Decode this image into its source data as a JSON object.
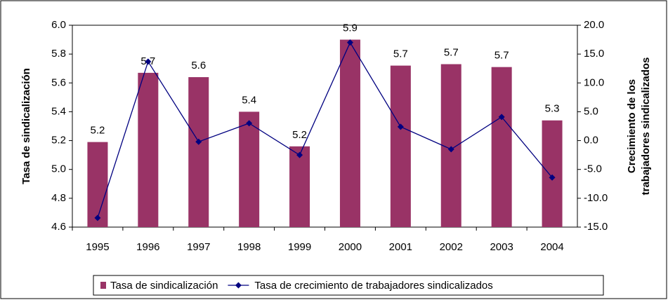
{
  "chart_data": {
    "type": "bar",
    "categories": [
      "1995",
      "1996",
      "1997",
      "1998",
      "1999",
      "2000",
      "2001",
      "2002",
      "2003",
      "2004"
    ],
    "ylabel": "Tasa de sindicalización",
    "y2label": [
      "Crecimiento  de los",
      "trabajadores sindicalizados"
    ],
    "ylim": [
      4.6,
      6.0
    ],
    "yticks": [
      4.6,
      4.8,
      {
        "value": 5.0,
        "label": "5.0"
      },
      5.2,
      5.4,
      5.6,
      5.8,
      {
        "value": 6.0,
        "label": "6.0"
      }
    ],
    "y2lim": [
      -15.0,
      20.0
    ],
    "y2ticks": [
      {
        "value": -15,
        "label": "-15.0"
      },
      {
        "value": -10,
        "label": "-10.0"
      },
      {
        "value": -5,
        "label": "-5.0"
      },
      {
        "value": 0,
        "label": "0.0"
      },
      {
        "value": 5,
        "label": "5.0"
      },
      {
        "value": 10,
        "label": "10.0"
      },
      {
        "value": 15,
        "label": "15.0"
      },
      {
        "value": 20,
        "label": "20.0"
      }
    ],
    "legend": "bottom",
    "series": [
      {
        "name": "Tasa de sindicalización",
        "type": "bar",
        "color": "#993366",
        "values": [
          5.19,
          5.67,
          5.64,
          5.4,
          5.16,
          5.9,
          5.72,
          5.73,
          5.71,
          5.34
        ],
        "value_labels": [
          "5.2",
          "5.7",
          "5.6",
          "5.4",
          "5.2",
          "5.9",
          "5.7",
          "5.7",
          "5.7",
          "5.3"
        ]
      },
      {
        "name": "Tasa de crecimiento de trabajadores sindicalizados",
        "type": "line",
        "color": "#000080",
        "axis": "y2",
        "values": [
          -13.4,
          13.7,
          -0.2,
          3.0,
          -2.5,
          17.0,
          2.4,
          -1.5,
          4.1,
          -6.4
        ]
      }
    ]
  }
}
